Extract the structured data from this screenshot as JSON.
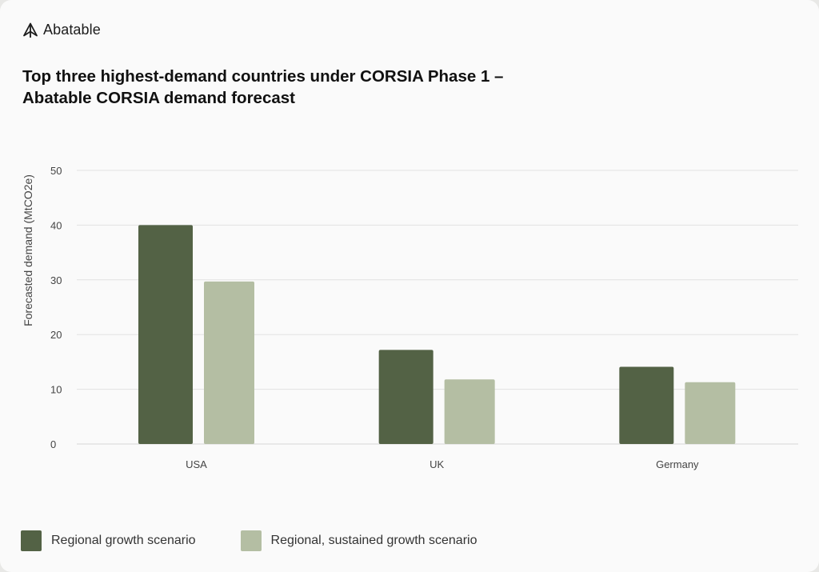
{
  "brand": {
    "name": "Abatable",
    "logo_icon": "abatable-tree-logo-icon"
  },
  "title_line1": "Top three highest-demand countries under CORSIA Phase 1 –",
  "title_line2": "Abatable CORSIA demand forecast",
  "colors": {
    "series1": "#536245",
    "series2": "#b4bea3",
    "grid": "#e2e2e2",
    "text": "#333333"
  },
  "chart_data": {
    "type": "bar",
    "title": "Top three highest-demand countries under CORSIA Phase 1 – Abatable CORSIA demand forecast",
    "xlabel": "",
    "ylabel": "Forecasted demand (MtCO2e)",
    "categories": [
      "USA",
      "UK",
      "Germany"
    ],
    "series": [
      {
        "name": "Regional growth scenario",
        "values": [
          40,
          17.2,
          14.1
        ]
      },
      {
        "name": "Regional, sustained growth scenario",
        "values": [
          29.7,
          11.8,
          11.3
        ]
      }
    ],
    "ylim": [
      0,
      50
    ],
    "yticks": [
      0,
      10,
      20,
      30,
      40,
      50
    ],
    "grid": true,
    "legend_position": "bottom-left"
  }
}
